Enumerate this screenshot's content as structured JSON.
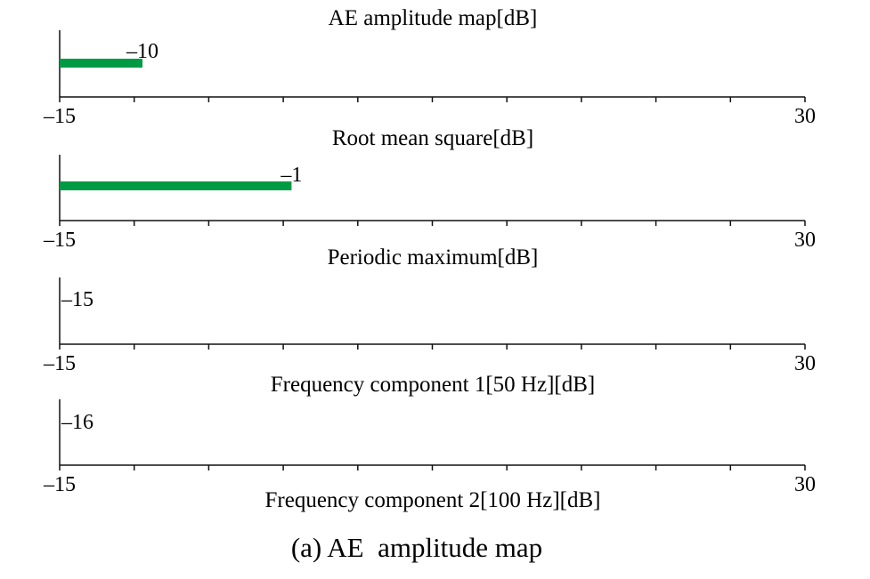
{
  "chart_data": [
    {
      "type": "bar",
      "title": "AE amplitude map[dB]",
      "xlim": [
        -15,
        30
      ],
      "value": -10,
      "value_label": "–10",
      "tick_labels": [
        "–15",
        "30"
      ],
      "bar_color": "#009a44"
    },
    {
      "type": "bar",
      "title": "Root mean square[dB]",
      "xlim": [
        -15,
        30
      ],
      "value": -1,
      "value_label": "–1",
      "tick_labels": [
        "–15",
        "30"
      ],
      "bar_color": "#009a44"
    },
    {
      "type": "bar",
      "title": "Periodic maximum[dB]",
      "xlim": [
        -15,
        30
      ],
      "value": -15,
      "value_label": "–15",
      "tick_labels": [
        "–15",
        "30"
      ],
      "bar_color": "#009a44"
    },
    {
      "type": "bar",
      "title": "Frequency component 1[50 Hz][dB]",
      "xlim": [
        -15,
        30
      ],
      "value": -16,
      "value_label": "–16",
      "tick_labels": [
        "–15",
        "30"
      ],
      "bar_color": "#009a44"
    },
    {
      "type": "bar",
      "title": "Frequency component 2[100 Hz][dB]",
      "xlim": [
        -15,
        30
      ],
      "value": null,
      "value_label": "",
      "tick_labels": [],
      "bar_color": "#009a44"
    }
  ],
  "caption": "(a) AE  amplitude map"
}
